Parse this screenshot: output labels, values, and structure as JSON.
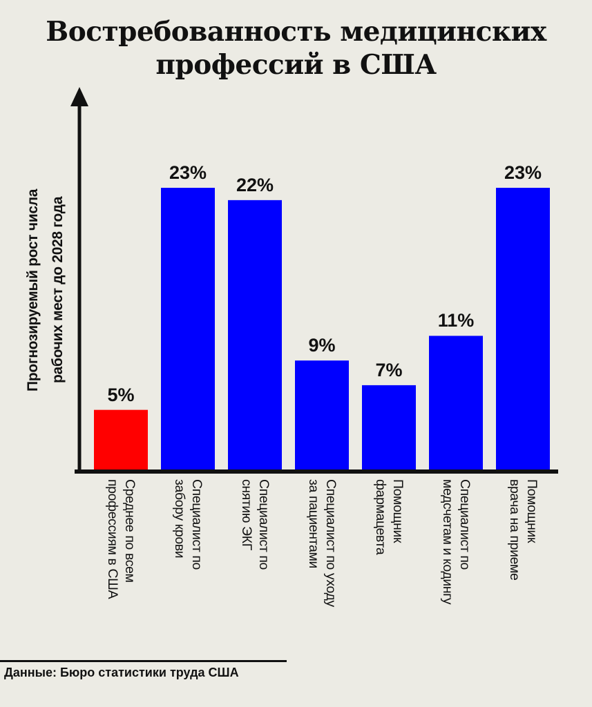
{
  "chart_data": {
    "type": "bar",
    "title": "Востребованность медицинских профессий в США",
    "title_lines": [
      "Востребованность медицинских",
      "профессий в США"
    ],
    "ylabel": "Прогнозируемый рост числа рабочих мест до 2028 года",
    "ylabel_lines": [
      "Прогнозируемый рост числа",
      "рабочих мест до 2028 года"
    ],
    "xlabel": "",
    "ylim": [
      0,
      30
    ],
    "grid": false,
    "categories": [
      [
        "Среднее по всем",
        "профессиям в США"
      ],
      [
        "Специалист по",
        "забору крови"
      ],
      [
        "Специалист по",
        "снятию ЭКГ"
      ],
      [
        "Специалист по уходу",
        "за пациентами"
      ],
      [
        "Помощник",
        "фармацевта"
      ],
      [
        "Специалист по",
        "медсчетам и кодингу"
      ],
      [
        "Помощник",
        "врача на приеме"
      ]
    ],
    "values": [
      5,
      23,
      22,
      9,
      7,
      11,
      23
    ],
    "value_labels": [
      "5%",
      "23%",
      "22%",
      "9%",
      "7%",
      "11%",
      "23%"
    ],
    "colors": [
      "#ff0000",
      "#0000ff",
      "#0000ff",
      "#0000ff",
      "#0000ff",
      "#0000ff",
      "#0000ff"
    ]
  },
  "source": "Данные: Бюро статистики труда США"
}
